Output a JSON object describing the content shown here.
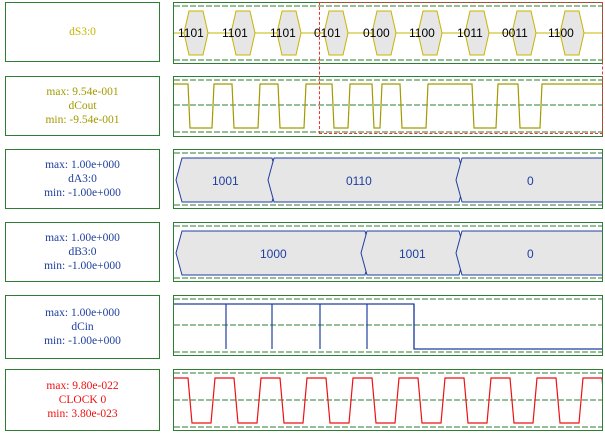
{
  "signals": [
    {
      "id": "dS3",
      "name": "dS3:0",
      "max": "",
      "min": "",
      "color": "#c8b400",
      "bus_values": [
        "1101",
        "1101",
        "1101",
        "0101",
        "0100",
        "1100",
        "1011",
        "0011",
        "1100"
      ]
    },
    {
      "id": "dCout",
      "name": "dCout",
      "max": "max: 9.54e-001",
      "min": "min: -9.54e-001",
      "color": "#a39a00"
    },
    {
      "id": "dA3",
      "name": "dA3:0",
      "max": "max: 1.00e+000",
      "min": "min: -1.00e+000",
      "color": "#1f3f9f",
      "bus_values": [
        "1001",
        "0110",
        "0"
      ]
    },
    {
      "id": "dB3",
      "name": "dB3:0",
      "max": "max: 1.00e+000",
      "min": "min: -1.00e+000",
      "color": "#1f3f9f",
      "bus_values": [
        "1000",
        "1001",
        "0"
      ]
    },
    {
      "id": "dCin",
      "name": "dCin",
      "max": "max: 1.00e+000",
      "min": "min: -1.00e+000",
      "color": "#1f3f9f"
    },
    {
      "id": "clock",
      "name": "CLOCK 0",
      "max": "max: 9.80e-022",
      "min": "min: 3.80e-023",
      "color": "#e11"
    }
  ],
  "colors": {
    "border": "#2e7d32",
    "grid": "#2e7d32",
    "bus_fill": "#e6e6e6",
    "cursor": "#e33"
  }
}
